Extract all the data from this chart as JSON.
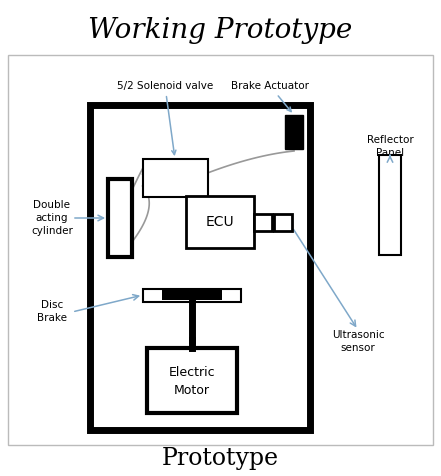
{
  "title": "Working Prototype",
  "caption": "Prototype",
  "title_fontsize": 20,
  "caption_fontsize": 17,
  "bg_color": "#ffffff",
  "arrow_color": "#7fa8c9",
  "labels": {
    "solenoid": "5/2 Solenoid valve",
    "brake_actuator": "Brake Actuator",
    "reflector": [
      "Reflector",
      "Panel"
    ],
    "double_acting": [
      "Double",
      "acting",
      "cylinder"
    ],
    "ecu": "ECU",
    "disc_brake": [
      "Disc",
      "Brake"
    ],
    "electric_motor": [
      "Electric",
      "Motor"
    ],
    "ultrasonic": [
      "Ultrasonic",
      "sensor"
    ]
  }
}
